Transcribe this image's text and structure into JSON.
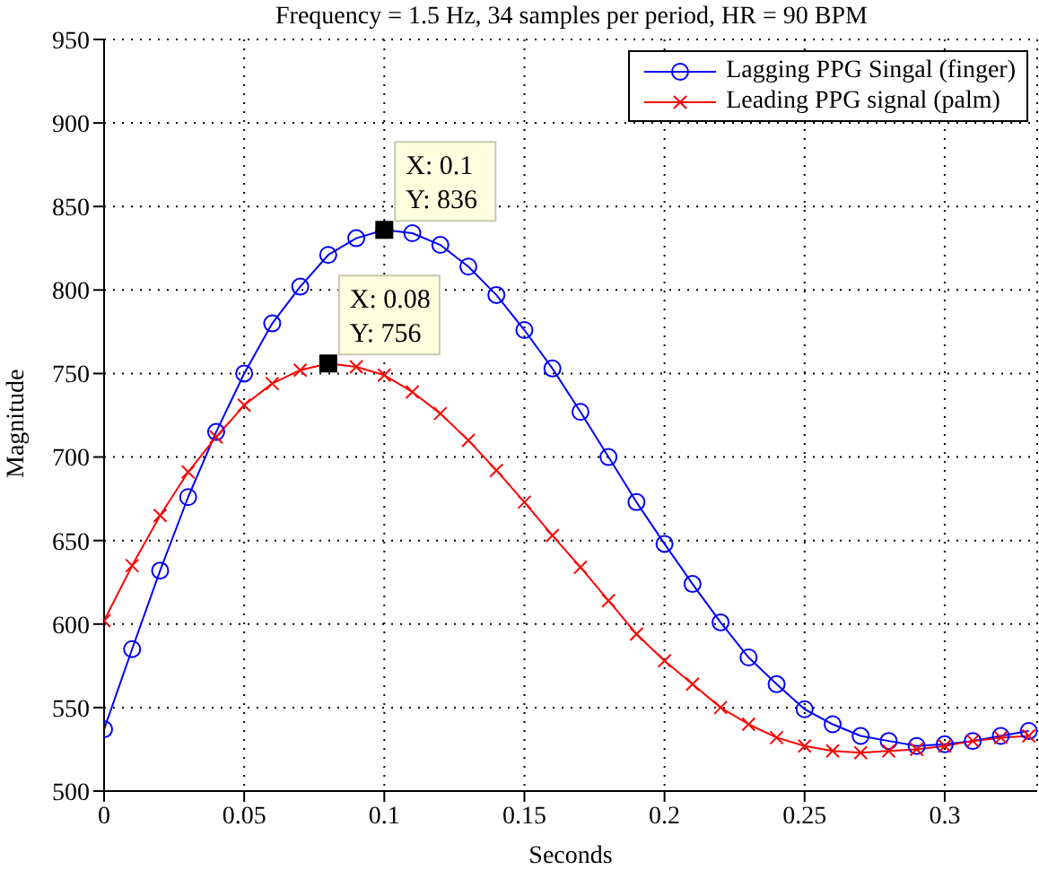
{
  "chart_data": {
    "type": "line",
    "title": "Frequency = 1.5 Hz, 34 samples per period, HR = 90 BPM",
    "xlabel": "Seconds",
    "ylabel": "Magnitude",
    "x": [
      0,
      0.01,
      0.02,
      0.03,
      0.04,
      0.05,
      0.06,
      0.07,
      0.08,
      0.09,
      0.1,
      0.11,
      0.12,
      0.13,
      0.14,
      0.15,
      0.16,
      0.17,
      0.18,
      0.19,
      0.2,
      0.21,
      0.22,
      0.23,
      0.24,
      0.25,
      0.26,
      0.27,
      0.28,
      0.29,
      0.3,
      0.31,
      0.32,
      0.33
    ],
    "series": [
      {
        "name": "Lagging PPG Singal (finger)",
        "color": "#0000ff",
        "marker": "circle",
        "values": [
          537,
          585,
          632,
          676,
          715,
          750,
          780,
          802,
          821,
          831,
          836,
          834,
          827,
          814,
          797,
          776,
          753,
          727,
          700,
          673,
          648,
          624,
          601,
          580,
          564,
          549,
          540,
          533,
          530,
          527,
          528,
          530,
          533,
          536
        ]
      },
      {
        "name": "Leading PPG signal (palm)",
        "color": "#ff0000",
        "marker": "cross",
        "values": [
          602,
          635,
          665,
          691,
          712,
          731,
          744,
          752,
          756,
          754,
          749,
          739,
          726,
          710,
          692,
          673,
          653,
          634,
          614,
          594,
          578,
          564,
          550,
          540,
          532,
          527,
          524,
          523,
          524,
          525,
          527,
          530,
          532,
          533
        ]
      }
    ],
    "xlim": [
      0,
      0.333
    ],
    "xticks": [
      0,
      0.05,
      0.1,
      0.15,
      0.2,
      0.25,
      0.3
    ],
    "ylim": [
      500,
      950
    ],
    "yticks": [
      500,
      550,
      600,
      650,
      700,
      750,
      800,
      850,
      900,
      950
    ],
    "grid": true,
    "legend": "top right",
    "line_style": "solid",
    "annotations": [
      {
        "text": "X: 0.1\nY: 836",
        "x": 0.1,
        "y": 836
      },
      {
        "text": "X: 0.08\nY: 756",
        "x": 0.08,
        "y": 756
      }
    ]
  }
}
